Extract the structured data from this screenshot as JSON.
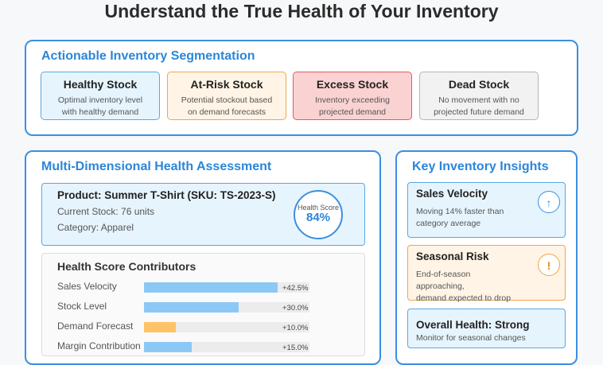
{
  "title": "Understand the True Health of Your Inventory",
  "segmentation": {
    "title": "Actionable Inventory Segmentation",
    "items": [
      {
        "label": "Healthy Stock",
        "desc_line1": "Optimal inventory level",
        "desc_line2": "with healthy demand"
      },
      {
        "label": "At-Risk Stock",
        "desc_line1": "Potential stockout based",
        "desc_line2": "on demand forecasts"
      },
      {
        "label": "Excess Stock",
        "desc_line1": "Inventory exceeding",
        "desc_line2": "projected demand"
      },
      {
        "label": "Dead Stock",
        "desc_line1": "No movement with no",
        "desc_line2": "projected future demand"
      }
    ]
  },
  "assessment": {
    "title": "Multi-Dimensional Health Assessment",
    "product": {
      "name": "Product: Summer T-Shirt (SKU: TS-2023-S)",
      "stock": "Current Stock: 76 units",
      "category": "Category: Apparel",
      "score_label": "Health Score",
      "score_value": "84%"
    },
    "contributors": {
      "title": "Health Score Contributors",
      "rows": [
        {
          "label": "Sales Velocity",
          "value": "+42.5%",
          "fill": 0.81,
          "color": "#8cc8f5"
        },
        {
          "label": "Stock Level",
          "value": "+30.0%",
          "fill": 0.57,
          "color": "#8cc8f5"
        },
        {
          "label": "Demand Forecast",
          "value": "+10.0%",
          "fill": 0.19,
          "color": "#ffc266"
        },
        {
          "label": "Margin Contribution",
          "value": "+15.0%",
          "fill": 0.29,
          "color": "#8cc8f5"
        }
      ]
    }
  },
  "insights": {
    "title": "Key Inventory Insights",
    "velocity": {
      "title": "Sales Velocity",
      "desc_line1": "Moving 14% faster than",
      "desc_line2": "category average",
      "icon": "↑",
      "color": "#3b8fe0"
    },
    "seasonal": {
      "title": "Seasonal Risk",
      "desc_line1": "End-of-season approaching,",
      "desc_line2": "demand expected to drop",
      "icon": "!",
      "color": "#f0a64a"
    },
    "overall": {
      "title": "Overall Health: Strong",
      "desc": "Monitor for seasonal changes"
    }
  }
}
